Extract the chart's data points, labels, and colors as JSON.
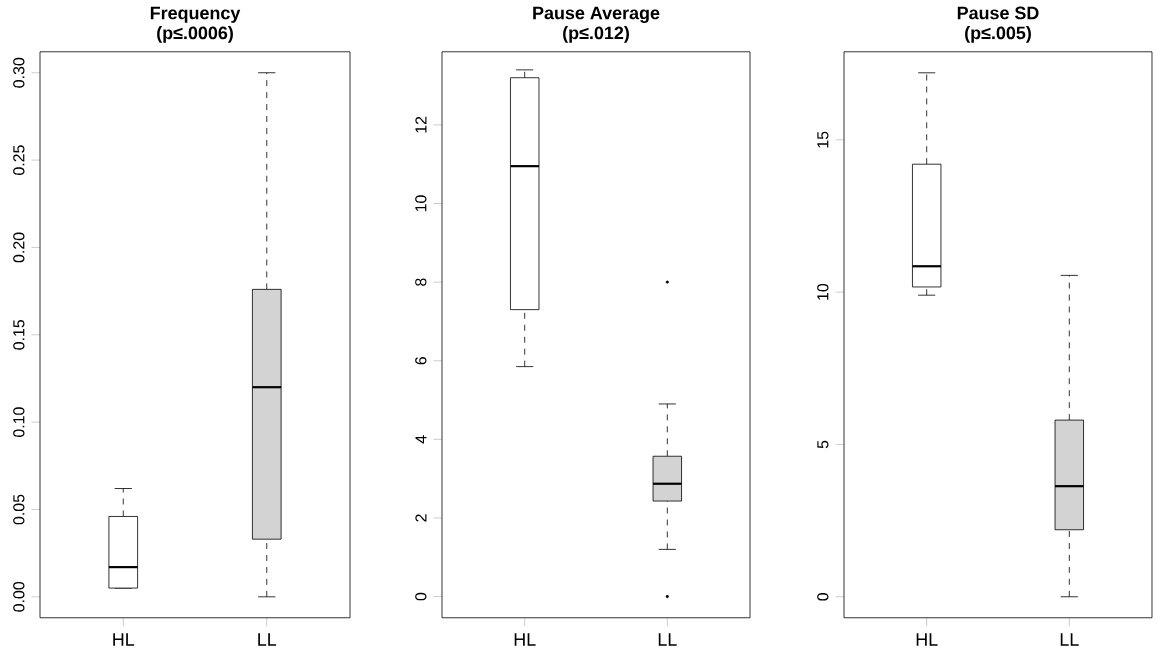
{
  "chart_data": [
    {
      "type": "box",
      "title": "Frequency",
      "subtitle": "(p≤.0006)",
      "categories": [
        "HL",
        "LL"
      ],
      "colors": [
        "#ffffff",
        "#d3d3d3"
      ],
      "boxes": [
        {
          "low": 0.005,
          "q1": 0.005,
          "median": 0.017,
          "q3": 0.046,
          "high": 0.062
        },
        {
          "low": 0.0,
          "q1": 0.033,
          "median": 0.12,
          "q3": 0.176,
          "high": 0.3
        }
      ],
      "ylim": [
        -0.012,
        0.312
      ],
      "yticks": [
        {
          "value": 0,
          "label": "0.00"
        },
        {
          "value": 0.05,
          "label": "0.05"
        },
        {
          "value": 0.1,
          "label": "0.10"
        },
        {
          "value": 0.15,
          "label": "0.15"
        },
        {
          "value": 0.2,
          "label": "0.20"
        },
        {
          "value": 0.25,
          "label": "0.25"
        },
        {
          "value": 0.3,
          "label": "0.30"
        }
      ]
    },
    {
      "type": "box",
      "title": "Pause Average",
      "subtitle": "(p≤.012)",
      "categories": [
        "HL",
        "LL"
      ],
      "colors": [
        "#ffffff",
        "#d3d3d3"
      ],
      "boxes": [
        {
          "low": 5.85,
          "q1": 7.3,
          "median": 10.95,
          "q3": 13.2,
          "high": 13.4
        },
        {
          "low": 1.2,
          "q1": 2.43,
          "median": 2.87,
          "q3": 3.57,
          "high": 4.9,
          "outliers": [
            8.0,
            0.0
          ]
        }
      ],
      "ylim": [
        -0.54,
        13.86
      ],
      "yticks": [
        0,
        2,
        4,
        6,
        8,
        10,
        12
      ]
    },
    {
      "type": "box",
      "title": "Pause SD",
      "subtitle": "(p≤.005)",
      "categories": [
        "HL",
        "LL"
      ],
      "colors": [
        "#ffffff",
        "#d3d3d3"
      ],
      "boxes": [
        {
          "low": 9.9,
          "q1": 10.17,
          "median": 10.85,
          "q3": 14.2,
          "high": 17.2
        },
        {
          "low": 0.0,
          "q1": 2.2,
          "median": 3.63,
          "q3": 5.8,
          "high": 10.55
        }
      ],
      "ylim": [
        -0.69,
        17.89
      ],
      "yticks": [
        0,
        5,
        10,
        15
      ]
    }
  ]
}
